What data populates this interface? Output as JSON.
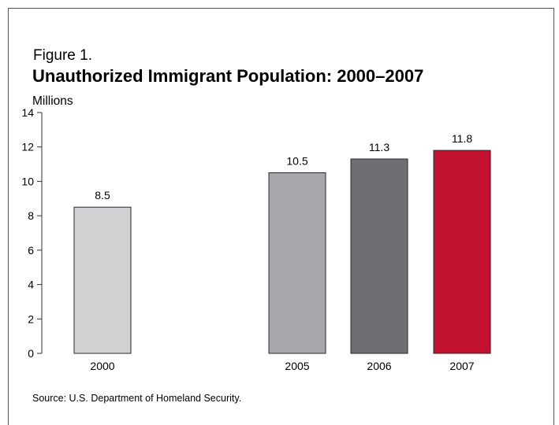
{
  "figure": {
    "label": "Figure 1.",
    "title": "Unauthorized Immigrant Population: 2000–2007",
    "source": "Source: U.S. Department of Homeland Security."
  },
  "chart_data": {
    "type": "bar",
    "title": "Unauthorized Immigrant Population: 2000–2007",
    "ylabel": "Millions",
    "xlabel": "",
    "categories": [
      "2000",
      "2005",
      "2006",
      "2007"
    ],
    "values": [
      8.5,
      10.5,
      11.3,
      11.8
    ],
    "value_labels": [
      "8.5",
      "10.5",
      "11.3",
      "11.8"
    ],
    "ylim": [
      0,
      14
    ],
    "yticks": [
      0,
      2,
      4,
      6,
      8,
      10,
      12,
      14
    ],
    "grid": false,
    "bar_colors": [
      "#d1d1d3",
      "#a7a6aa",
      "#6f6e73",
      "#c31230"
    ],
    "bar_edge_color": "#2a2a2a"
  }
}
